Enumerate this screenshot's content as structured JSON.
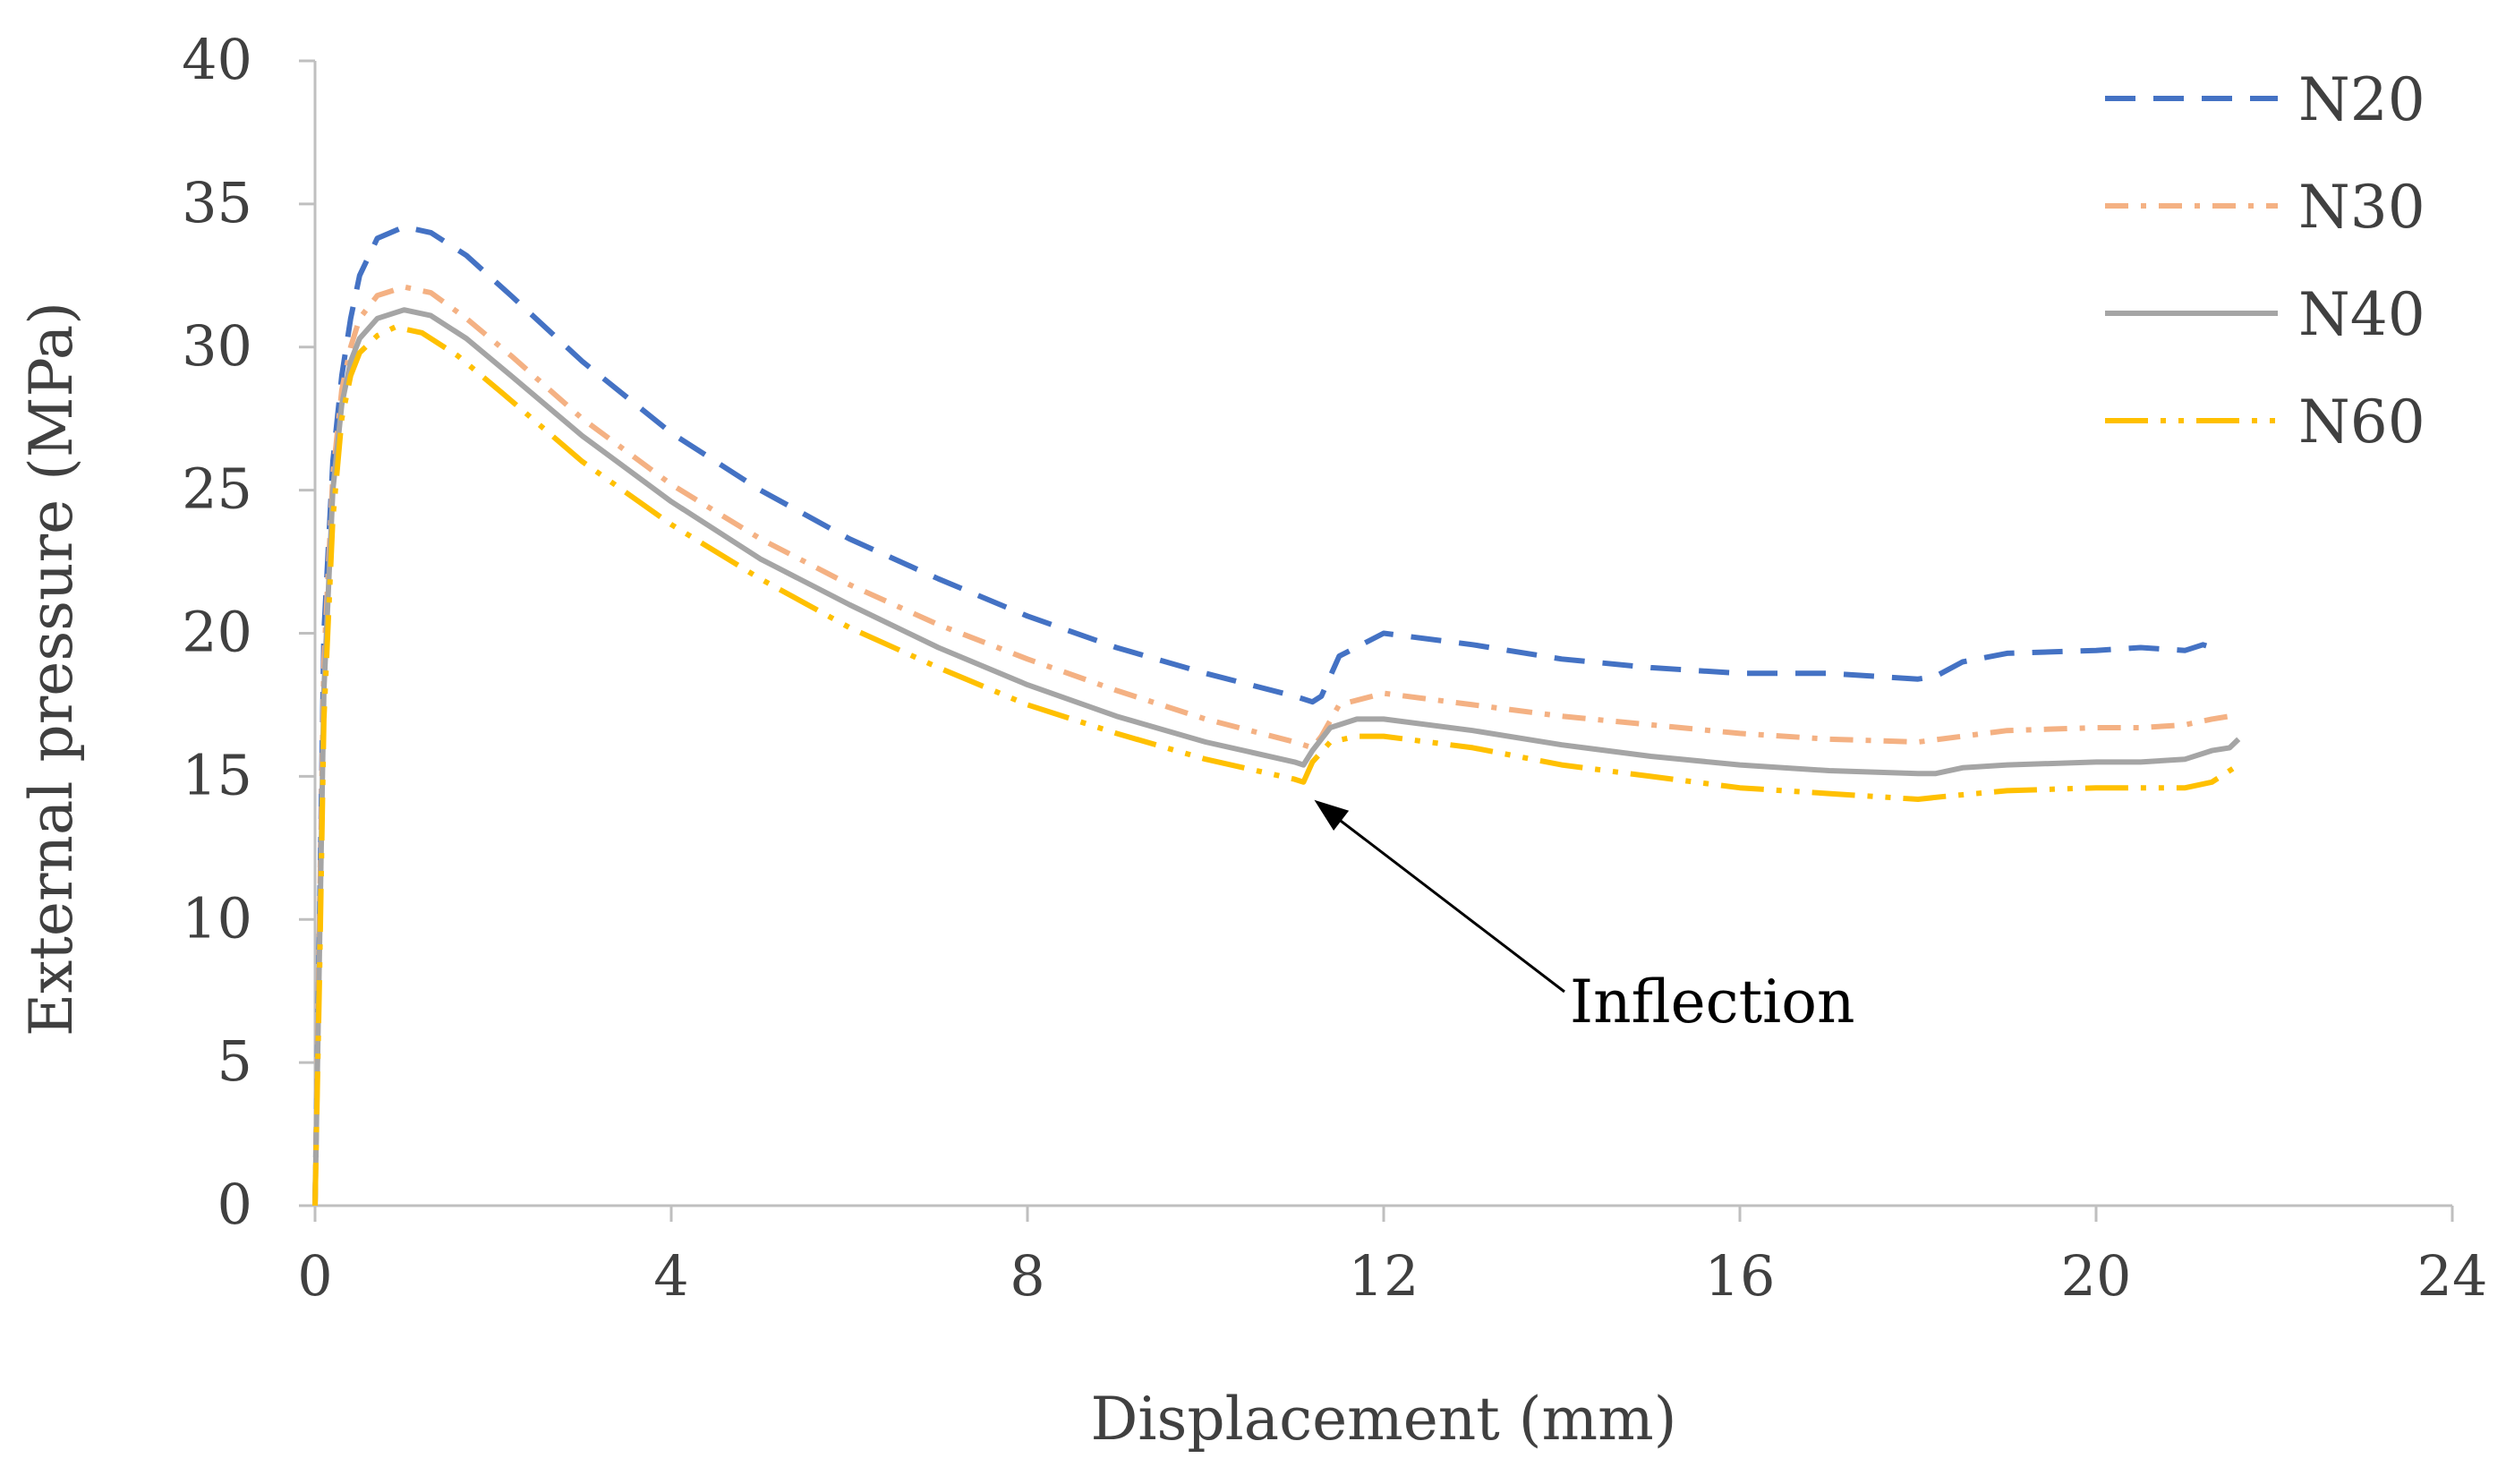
{
  "chart_data": {
    "type": "line",
    "title": "",
    "xlabel": "Displacement (mm)",
    "ylabel": "External pressure (MPa)",
    "xlim": [
      0,
      24
    ],
    "ylim": [
      0,
      40
    ],
    "xticks": [
      0,
      4,
      8,
      12,
      16,
      20,
      24
    ],
    "yticks": [
      0,
      5,
      10,
      15,
      20,
      25,
      30,
      35,
      40
    ],
    "grid": false,
    "legend_position": "top-right",
    "annotation": {
      "text": "Inflection",
      "x": 11.1,
      "y": 14.8
    },
    "series": [
      {
        "name": "N20",
        "color": "#4472C4",
        "dash": "dashed",
        "x": [
          0,
          0.05,
          0.1,
          0.2,
          0.3,
          0.4,
          0.5,
          0.7,
          1.0,
          1.3,
          1.7,
          2.2,
          3,
          4,
          5,
          6,
          7,
          8,
          9,
          10,
          11,
          11.2,
          11.3,
          11.5,
          12,
          13,
          14,
          15,
          16,
          17,
          18,
          18.2,
          18.5,
          19,
          20,
          20.5,
          21,
          21.2,
          21.3
        ],
        "y": [
          0,
          10,
          20,
          26,
          29,
          31,
          32.5,
          33.8,
          34.2,
          34.0,
          33.2,
          31.8,
          29.5,
          27,
          25,
          23.3,
          21.9,
          20.6,
          19.5,
          18.6,
          17.8,
          17.6,
          17.8,
          19.2,
          20.0,
          19.6,
          19.1,
          18.8,
          18.6,
          18.6,
          18.4,
          18.5,
          19.0,
          19.3,
          19.4,
          19.5,
          19.4,
          19.6,
          19.5
        ]
      },
      {
        "name": "N30",
        "color": "#F4B183",
        "dash": "dash-dot",
        "x": [
          0,
          0.05,
          0.1,
          0.2,
          0.3,
          0.4,
          0.5,
          0.7,
          1.0,
          1.3,
          1.7,
          2.2,
          3,
          4,
          5,
          6,
          7,
          8,
          9,
          10,
          11,
          11.2,
          11.3,
          11.5,
          12,
          13,
          14,
          15,
          16,
          17,
          18,
          18.5,
          19,
          20,
          20.5,
          21,
          21.3,
          21.5
        ],
        "y": [
          0,
          10,
          19,
          25.5,
          28.5,
          30,
          31,
          31.8,
          32.1,
          31.9,
          31.0,
          29.7,
          27.5,
          25.2,
          23.3,
          21.7,
          20.3,
          19.1,
          18.0,
          17.0,
          16.2,
          16.0,
          16.4,
          17.5,
          17.9,
          17.5,
          17.1,
          16.8,
          16.5,
          16.3,
          16.2,
          16.4,
          16.6,
          16.7,
          16.7,
          16.8,
          17.0,
          17.1
        ]
      },
      {
        "name": "N40",
        "color": "#A5A5A5",
        "dash": "solid",
        "x": [
          0,
          0.05,
          0.1,
          0.2,
          0.3,
          0.4,
          0.5,
          0.7,
          1.0,
          1.3,
          1.7,
          2.2,
          3,
          4,
          5,
          6,
          7,
          8,
          9,
          10,
          11,
          11.1,
          11.2,
          11.4,
          11.7,
          12,
          13,
          14,
          15,
          16,
          17,
          18,
          18.2,
          18.5,
          19,
          20,
          20.5,
          21,
          21.3,
          21.5,
          21.6
        ],
        "y": [
          0,
          9,
          18,
          25,
          28,
          29.5,
          30.3,
          31.0,
          31.3,
          31.1,
          30.3,
          29.0,
          26.9,
          24.6,
          22.6,
          21.0,
          19.5,
          18.2,
          17.1,
          16.2,
          15.5,
          15.4,
          15.9,
          16.7,
          17.0,
          17.0,
          16.6,
          16.1,
          15.7,
          15.4,
          15.2,
          15.1,
          15.1,
          15.3,
          15.4,
          15.5,
          15.5,
          15.6,
          15.9,
          16.0,
          16.3
        ]
      },
      {
        "name": "N60",
        "color": "#FFC000",
        "dash": "long-dash-dot-dot",
        "x": [
          0,
          0.05,
          0.1,
          0.2,
          0.3,
          0.4,
          0.5,
          0.7,
          0.9,
          1.2,
          1.6,
          2.1,
          3,
          4,
          5,
          6,
          7,
          8,
          9,
          10,
          11,
          11.1,
          11.2,
          11.4,
          11.7,
          12,
          13,
          14,
          15,
          16,
          17,
          18,
          18.3,
          19,
          20,
          20.5,
          21,
          21.3,
          21.6
        ],
        "y": [
          0,
          8,
          17,
          24,
          27.5,
          29,
          29.8,
          30.4,
          30.7,
          30.5,
          29.7,
          28.4,
          26.0,
          23.8,
          21.9,
          20.2,
          18.8,
          17.5,
          16.5,
          15.6,
          14.9,
          14.8,
          15.5,
          16.2,
          16.4,
          16.4,
          16.0,
          15.4,
          15.0,
          14.6,
          14.4,
          14.2,
          14.3,
          14.5,
          14.6,
          14.6,
          14.6,
          14.8,
          15.4
        ]
      }
    ]
  }
}
